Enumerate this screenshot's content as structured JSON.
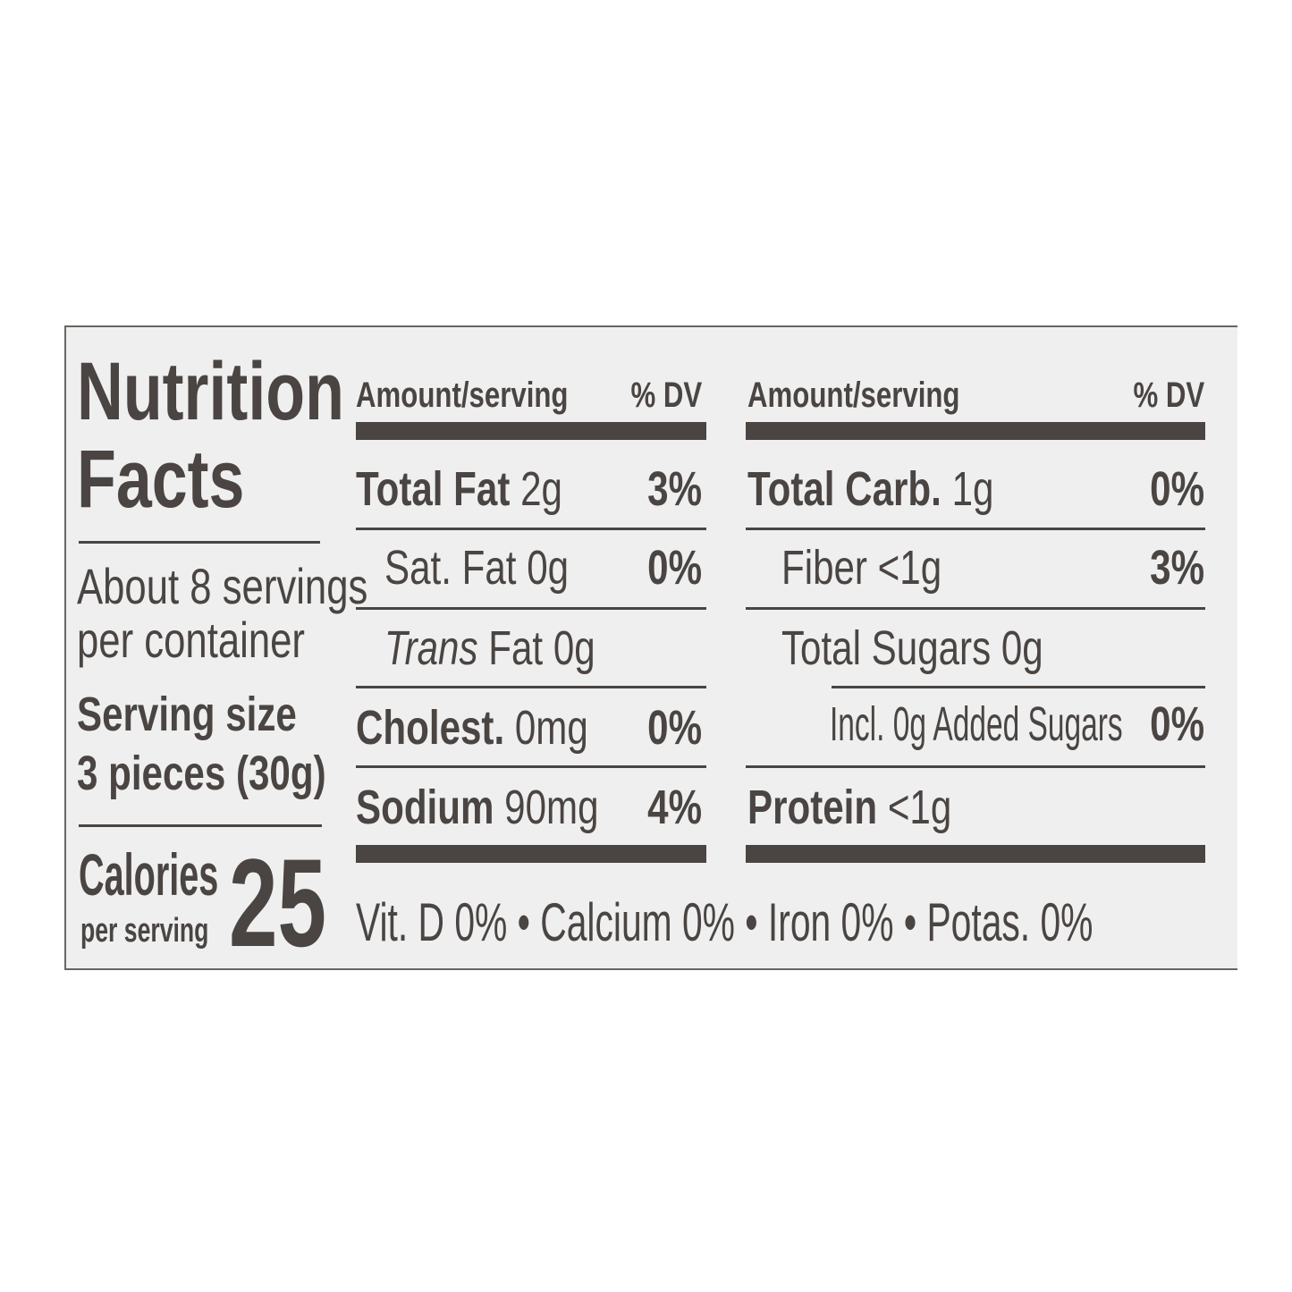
{
  "title_line1": "Nutrition",
  "title_line2": "Facts",
  "servings_line1": "About 8 servings",
  "servings_line2": "per container",
  "serving_size_label": "Serving size",
  "serving_size_value": "3 pieces (30g)",
  "calories_label": "Calories",
  "calories_sub": "per serving",
  "calories_value": "25",
  "left_table": {
    "header_amount": "Amount/serving",
    "header_dv": "% DV",
    "rows": [
      {
        "name": "Total Fat",
        "amount": "2g",
        "dv": "3%"
      },
      {
        "name": "Sat. Fat",
        "amount": "0g",
        "dv": "0%"
      },
      {
        "name": "Trans",
        "amount": "Fat 0g",
        "dv": ""
      },
      {
        "name": "Cholest.",
        "amount": "0mg",
        "dv": "0%"
      },
      {
        "name": "Sodium",
        "amount": "90mg",
        "dv": "4%"
      }
    ]
  },
  "right_table": {
    "header_amount": "Amount/serving",
    "header_dv": "% DV",
    "rows": [
      {
        "name": "Total Carb.",
        "amount": "1g",
        "dv": "0%"
      },
      {
        "name": "Fiber",
        "amount": "<1g",
        "dv": "3%"
      },
      {
        "name": "Total Sugars",
        "amount": "0g",
        "dv": ""
      },
      {
        "name": "Incl. 0g Added Sugars",
        "amount": "",
        "dv": "0%"
      },
      {
        "name": "Protein",
        "amount": "<1g",
        "dv": ""
      }
    ]
  },
  "footer": "Vit. D 0% • Calcium 0% • Iron 0% • Potas. 0%",
  "colors": {
    "ink": "#4a4542",
    "label_bg": "#efefef"
  }
}
